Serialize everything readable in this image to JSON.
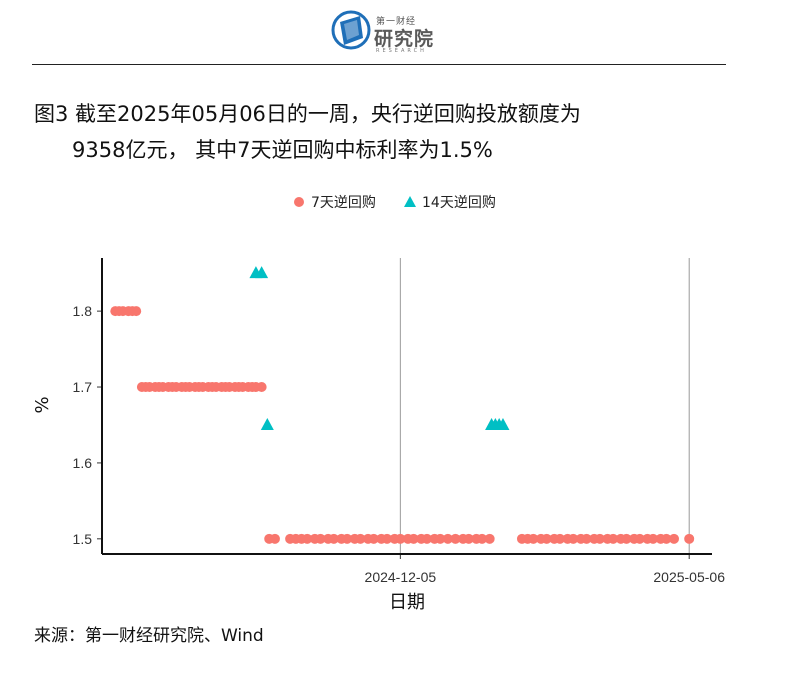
{
  "logo": {
    "top": "第一财经",
    "main": "研究院",
    "sub": "RESEARCH"
  },
  "title": {
    "line1": "图3  截至2025年05月06日的一周，央行逆回购投放额度为",
    "line2": "9358亿元， 其中7天逆回购中标利率为1.5%"
  },
  "source": "来源：第一财经研究院、Wind",
  "colors": {
    "s7": "#F8766D",
    "s14": "#00BFC4"
  },
  "chart_data": {
    "type": "scatter",
    "xlabel": "日期",
    "ylabel": "%",
    "x_ticks": [
      "2024-12-05",
      "2025-05-06"
    ],
    "y_ticks": [
      "1.5",
      "1.6",
      "1.7",
      "1.8"
    ],
    "xlim": [
      "2024-07-01",
      "2025-05-18"
    ],
    "ylim": [
      1.48,
      1.87
    ],
    "legend_position": "top",
    "series": [
      {
        "name": "7天逆回购",
        "shape": "circle",
        "color": "#F8766D",
        "points": [
          [
            "2024-07-08",
            1.8
          ],
          [
            "2024-07-10",
            1.8
          ],
          [
            "2024-07-12",
            1.8
          ],
          [
            "2024-07-15",
            1.8
          ],
          [
            "2024-07-17",
            1.8
          ],
          [
            "2024-07-19",
            1.8
          ],
          [
            "2024-07-22",
            1.7
          ],
          [
            "2024-07-24",
            1.7
          ],
          [
            "2024-07-26",
            1.7
          ],
          [
            "2024-07-29",
            1.7
          ],
          [
            "2024-07-31",
            1.7
          ],
          [
            "2024-08-02",
            1.7
          ],
          [
            "2024-08-05",
            1.7
          ],
          [
            "2024-08-07",
            1.7
          ],
          [
            "2024-08-09",
            1.7
          ],
          [
            "2024-08-12",
            1.7
          ],
          [
            "2024-08-14",
            1.7
          ],
          [
            "2024-08-16",
            1.7
          ],
          [
            "2024-08-19",
            1.7
          ],
          [
            "2024-08-21",
            1.7
          ],
          [
            "2024-08-23",
            1.7
          ],
          [
            "2024-08-26",
            1.7
          ],
          [
            "2024-08-28",
            1.7
          ],
          [
            "2024-08-30",
            1.7
          ],
          [
            "2024-09-02",
            1.7
          ],
          [
            "2024-09-04",
            1.7
          ],
          [
            "2024-09-06",
            1.7
          ],
          [
            "2024-09-09",
            1.7
          ],
          [
            "2024-09-11",
            1.7
          ],
          [
            "2024-09-13",
            1.7
          ],
          [
            "2024-09-16",
            1.7
          ],
          [
            "2024-09-18",
            1.7
          ],
          [
            "2024-09-20",
            1.7
          ],
          [
            "2024-09-23",
            1.7
          ],
          [
            "2024-09-27",
            1.5
          ],
          [
            "2024-09-30",
            1.5
          ],
          [
            "2024-10-08",
            1.5
          ],
          [
            "2024-10-11",
            1.5
          ],
          [
            "2024-10-14",
            1.5
          ],
          [
            "2024-10-17",
            1.5
          ],
          [
            "2024-10-21",
            1.5
          ],
          [
            "2024-10-24",
            1.5
          ],
          [
            "2024-10-28",
            1.5
          ],
          [
            "2024-10-31",
            1.5
          ],
          [
            "2024-11-04",
            1.5
          ],
          [
            "2024-11-07",
            1.5
          ],
          [
            "2024-11-11",
            1.5
          ],
          [
            "2024-11-14",
            1.5
          ],
          [
            "2024-11-18",
            1.5
          ],
          [
            "2024-11-21",
            1.5
          ],
          [
            "2024-11-25",
            1.5
          ],
          [
            "2024-11-28",
            1.5
          ],
          [
            "2024-12-02",
            1.5
          ],
          [
            "2024-12-05",
            1.5
          ],
          [
            "2024-12-09",
            1.5
          ],
          [
            "2024-12-12",
            1.5
          ],
          [
            "2024-12-16",
            1.5
          ],
          [
            "2024-12-19",
            1.5
          ],
          [
            "2024-12-23",
            1.5
          ],
          [
            "2024-12-26",
            1.5
          ],
          [
            "2024-12-30",
            1.5
          ],
          [
            "2025-01-03",
            1.5
          ],
          [
            "2025-01-07",
            1.5
          ],
          [
            "2025-01-10",
            1.5
          ],
          [
            "2025-01-14",
            1.5
          ],
          [
            "2025-01-17",
            1.5
          ],
          [
            "2025-01-21",
            1.5
          ],
          [
            "2025-02-07",
            1.5
          ],
          [
            "2025-02-10",
            1.5
          ],
          [
            "2025-02-13",
            1.5
          ],
          [
            "2025-02-17",
            1.5
          ],
          [
            "2025-02-20",
            1.5
          ],
          [
            "2025-02-24",
            1.5
          ],
          [
            "2025-02-27",
            1.5
          ],
          [
            "2025-03-03",
            1.5
          ],
          [
            "2025-03-06",
            1.5
          ],
          [
            "2025-03-10",
            1.5
          ],
          [
            "2025-03-13",
            1.5
          ],
          [
            "2025-03-17",
            1.5
          ],
          [
            "2025-03-20",
            1.5
          ],
          [
            "2025-03-24",
            1.5
          ],
          [
            "2025-03-27",
            1.5
          ],
          [
            "2025-03-31",
            1.5
          ],
          [
            "2025-04-03",
            1.5
          ],
          [
            "2025-04-07",
            1.5
          ],
          [
            "2025-04-10",
            1.5
          ],
          [
            "2025-04-14",
            1.5
          ],
          [
            "2025-04-17",
            1.5
          ],
          [
            "2025-04-21",
            1.5
          ],
          [
            "2025-04-24",
            1.5
          ],
          [
            "2025-04-28",
            1.5
          ],
          [
            "2025-05-06",
            1.5
          ]
        ]
      },
      {
        "name": "14天逆回购",
        "shape": "triangle",
        "color": "#00BFC4",
        "points": [
          [
            "2024-09-20",
            1.85
          ],
          [
            "2024-09-23",
            1.85
          ],
          [
            "2024-09-26",
            1.65
          ],
          [
            "2025-01-22",
            1.65
          ],
          [
            "2025-01-24",
            1.65
          ],
          [
            "2025-01-26",
            1.65
          ],
          [
            "2025-01-28",
            1.65
          ]
        ]
      }
    ]
  }
}
